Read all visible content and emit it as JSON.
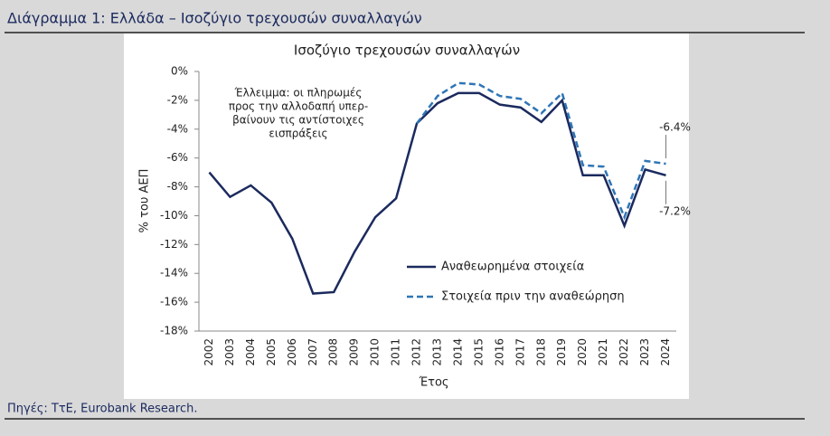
{
  "header": {
    "title": "Διάγραμμα 1: Ελλάδα – Ισοζύγιο τρεχουσών συναλλαγών"
  },
  "footer": {
    "source": "Πηγές: ΤτΕ, Eurobank Research."
  },
  "chart_data": {
    "type": "line",
    "title": "Ισοζύγιο τρεχουσών συναλλαγών",
    "x_label": "Έτος",
    "y_label": "% του ΑΕΠ",
    "annotation": [
      "Έλλειμμα: οι πληρωμές",
      "προς την αλλοδαπή υπερ-",
      "βαίνουν τις αντίστοιχες",
      "εισπράξεις"
    ],
    "categories": [
      "2002",
      "2003",
      "2004",
      "2005",
      "2006",
      "2007",
      "2008",
      "2009",
      "2010",
      "2011",
      "2012",
      "2013",
      "2014",
      "2015",
      "2016",
      "2017",
      "2018",
      "2019",
      "2020",
      "2021",
      "2022",
      "2023",
      "2024"
    ],
    "series": [
      {
        "name": "Αναθεωρημένα στοιχεία",
        "color": "#1b2a5e",
        "dash": false,
        "values": [
          -7.0,
          -8.7,
          -7.9,
          -9.1,
          -11.6,
          -15.4,
          -15.3,
          -12.5,
          -10.1,
          -8.8,
          -3.6,
          -2.2,
          -1.5,
          -1.5,
          -2.3,
          -2.5,
          -3.5,
          -2.0,
          -7.2,
          -7.2,
          -10.7,
          -6.8,
          -7.2
        ],
        "value_labels": [
          null,
          null,
          null,
          null,
          null,
          null,
          null,
          null,
          null,
          null,
          null,
          null,
          null,
          null,
          null,
          null,
          null,
          null,
          null,
          null,
          null,
          null,
          "-7.2%"
        ]
      },
      {
        "name": "Στοιχεία πριν την αναθεώρηση",
        "color": "#2e75b6",
        "dash": true,
        "values": [
          null,
          null,
          null,
          null,
          null,
          null,
          null,
          null,
          null,
          null,
          -3.6,
          -1.7,
          -0.8,
          -0.9,
          -1.7,
          -1.9,
          -2.9,
          -1.5,
          -6.5,
          -6.6,
          -10.1,
          -6.2,
          -6.4
        ],
        "value_labels": [
          null,
          null,
          null,
          null,
          null,
          null,
          null,
          null,
          null,
          null,
          null,
          null,
          null,
          null,
          null,
          null,
          null,
          null,
          null,
          null,
          null,
          null,
          "-6.4%"
        ]
      }
    ],
    "ylim": [
      -18,
      0
    ],
    "yticks": [
      {
        "value": 0,
        "label": "0%"
      },
      {
        "value": -2,
        "label": "-2%"
      },
      {
        "value": -4,
        "label": "-4%"
      },
      {
        "value": -6,
        "label": "-6%"
      },
      {
        "value": -8,
        "label": "-8%"
      },
      {
        "value": -10,
        "label": "-10%"
      },
      {
        "value": -12,
        "label": "-12%"
      },
      {
        "value": -14,
        "label": "-14%"
      },
      {
        "value": -16,
        "label": "-16%"
      },
      {
        "value": -18,
        "label": "-18%"
      }
    ],
    "grid": false
  }
}
